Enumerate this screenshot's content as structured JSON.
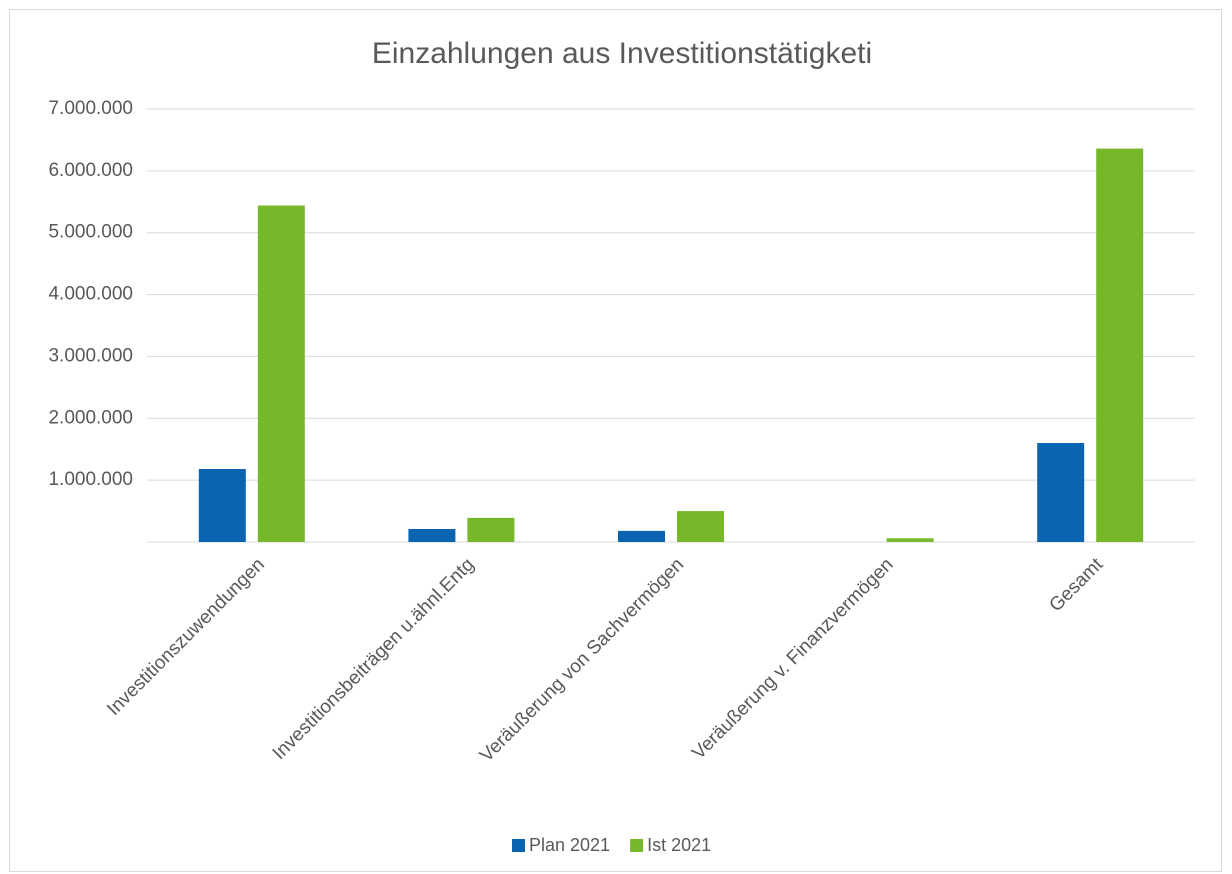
{
  "chart_data": {
    "type": "bar",
    "title": "Einzahlungen aus Investitionstätigketi",
    "categories": [
      "Investitionszuwendungen",
      "Investitionsbeiträgen u.ähnl.Entg",
      "Veräußerung von Sachvermögen",
      "Veräußerung v. Finanzvermögen",
      "Gesamt"
    ],
    "series": [
      {
        "name": "Plan 2021",
        "color": "#0b64b0",
        "values": [
          1180000,
          210000,
          180000,
          0,
          1600000
        ]
      },
      {
        "name": "Ist 2021",
        "color": "#76b82a",
        "values": [
          5440000,
          390000,
          500000,
          60000,
          6360000
        ]
      }
    ],
    "ylim": [
      0,
      7000000
    ],
    "yticks": [
      {
        "value": 1000000,
        "label": "1.000.000"
      },
      {
        "value": 2000000,
        "label": "2.000.000"
      },
      {
        "value": 3000000,
        "label": "3.000.000"
      },
      {
        "value": 4000000,
        "label": "4.000.000"
      },
      {
        "value": 5000000,
        "label": "5.000.000"
      },
      {
        "value": 6000000,
        "label": "6.000.000"
      },
      {
        "value": 7000000,
        "label": "7.000.000"
      }
    ],
    "grid": true,
    "legend": "bottom"
  }
}
